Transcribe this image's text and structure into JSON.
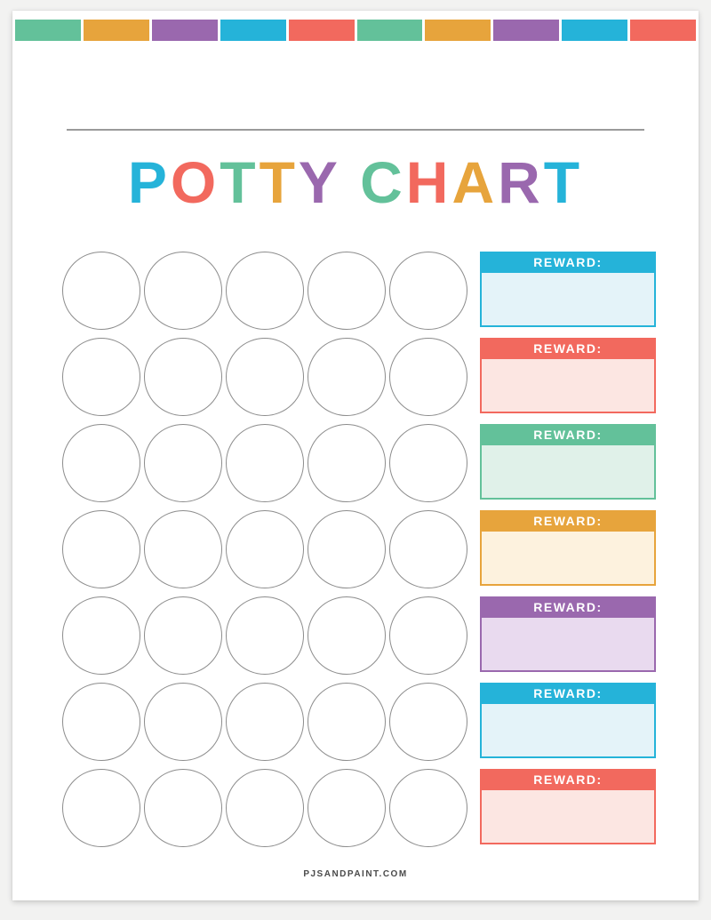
{
  "document": {
    "title": "POTTY CHART",
    "title_letters": [
      {
        "char": "P",
        "color": "#25b3d9"
      },
      {
        "char": "O",
        "color": "#f2695e"
      },
      {
        "char": "T",
        "color": "#63c19a"
      },
      {
        "char": "T",
        "color": "#e7a43c"
      },
      {
        "char": "Y",
        "color": "#9a68ae"
      },
      {
        "char": " ",
        "color": "transparent"
      },
      {
        "char": "C",
        "color": "#63c19a"
      },
      {
        "char": "H",
        "color": "#f2695e"
      },
      {
        "char": "A",
        "color": "#e7a43c"
      },
      {
        "char": "R",
        "color": "#9a68ae"
      },
      {
        "char": "T",
        "color": "#25b3d9"
      }
    ],
    "footer_text": "PJSANDPAINT.COM"
  },
  "palette": {
    "green": "#63c19a",
    "orange": "#e7a43c",
    "purple": "#9a68ae",
    "blue": "#25b3d9",
    "coral": "#f2695e",
    "circle_border": "#8c8c8c"
  },
  "top_stripe": {
    "colors": [
      "#63c19a",
      "#e7a43c",
      "#9a68ae",
      "#25b3d9",
      "#f2695e",
      "#63c19a",
      "#e7a43c",
      "#9a68ae",
      "#25b3d9",
      "#f2695e"
    ]
  },
  "sticker_grid": {
    "rows": 7,
    "columns": 5,
    "total_circles": 35
  },
  "rewards": {
    "label": "REWARD:",
    "items": [
      {
        "color_name": "blue",
        "header_color": "#25b3d9",
        "body_color": "#e4f3f9"
      },
      {
        "color_name": "coral",
        "header_color": "#f2695e",
        "body_color": "#fce6e2"
      },
      {
        "color_name": "green",
        "header_color": "#63c19a",
        "body_color": "#e0f1e9"
      },
      {
        "color_name": "orange",
        "header_color": "#e7a43c",
        "body_color": "#fdf2de"
      },
      {
        "color_name": "purple",
        "header_color": "#9a68ae",
        "body_color": "#e9daef"
      },
      {
        "color_name": "blue",
        "header_color": "#25b3d9",
        "body_color": "#e4f3f9"
      },
      {
        "color_name": "coral",
        "header_color": "#f2695e",
        "body_color": "#fce6e2"
      }
    ]
  }
}
